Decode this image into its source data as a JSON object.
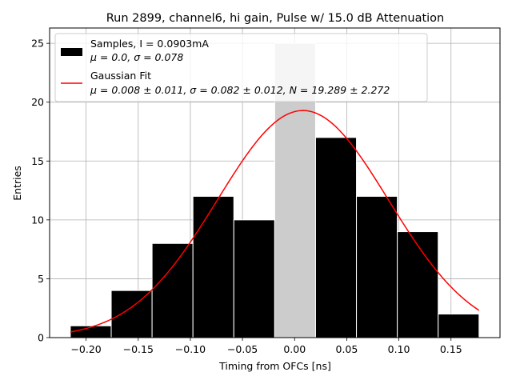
{
  "chart_data": {
    "type": "bar",
    "title": "Run 2899, channel6, hi gain, Pulse w/ 15.0 dB Attenuation",
    "xlabel": "Timing from OFCs [ns]",
    "ylabel": "Entries",
    "xlim": [
      -0.235,
      0.197
    ],
    "ylim": [
      0,
      26.3
    ],
    "grid": true,
    "legend_position": "top-left",
    "xticks": [
      -0.2,
      -0.15,
      -0.1,
      -0.05,
      0.0,
      0.05,
      0.1,
      0.15
    ],
    "xtick_labels": [
      "−0.20",
      "−0.15",
      "−0.10",
      "−0.05",
      "0.00",
      "0.05",
      "0.10",
      "0.15"
    ],
    "yticks": [
      0,
      5,
      10,
      15,
      20,
      25
    ],
    "ytick_labels": [
      "0",
      "5",
      "10",
      "15",
      "20",
      "25"
    ],
    "bins": [
      {
        "left": -0.2151,
        "right": -0.1759,
        "count": 1
      },
      {
        "left": -0.1759,
        "right": -0.1367,
        "count": 4
      },
      {
        "left": -0.1367,
        "right": -0.0975,
        "count": 8
      },
      {
        "left": -0.0975,
        "right": -0.0583,
        "count": 12
      },
      {
        "left": -0.0583,
        "right": -0.0191,
        "count": 10
      },
      {
        "left": -0.0191,
        "right": 0.0201,
        "count": 25
      },
      {
        "left": 0.0201,
        "right": 0.0593,
        "count": 17
      },
      {
        "left": 0.0593,
        "right": 0.0985,
        "count": 12
      },
      {
        "left": 0.0985,
        "right": 0.1377,
        "count": 9
      },
      {
        "left": 0.1377,
        "right": 0.1769,
        "count": 2
      }
    ],
    "highlight_bin_index": 5,
    "series": [
      {
        "name": "Samples",
        "kind": "histogram",
        "color": "#000000",
        "highlight_color": "#cccccc"
      },
      {
        "name": "Gaussian Fit",
        "kind": "curve",
        "color": "#ff0000",
        "mu": 0.008,
        "sigma": 0.082,
        "N": 19.289,
        "x_range": [
          -0.2151,
          0.1769
        ]
      }
    ],
    "legend": {
      "samples_line1": "Samples, I = 0.0903mA",
      "samples_line2": "μ = 0.0, σ = 0.078",
      "fit_line1": "Gaussian Fit",
      "fit_line2": "μ = 0.008 ± 0.011, σ = 0.082 ± 0.012, N = 19.289 ± 2.272"
    }
  }
}
